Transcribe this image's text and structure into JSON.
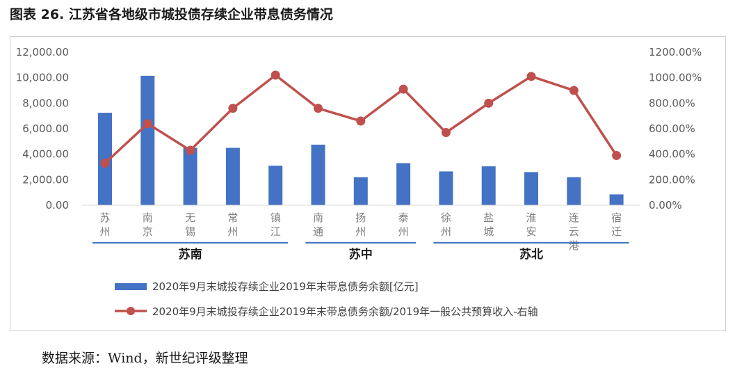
{
  "figure": {
    "title": "图表 26. 江苏省各地级市城投债存续企业带息债务情况",
    "source": "数据来源：Wind，新世纪评级整理"
  },
  "chart_data": {
    "type": "bar+line",
    "categories": [
      [
        "苏",
        "州"
      ],
      [
        "南",
        "京"
      ],
      [
        "无",
        "锡"
      ],
      [
        "常",
        "州"
      ],
      [
        "镇",
        "江"
      ],
      [
        "南",
        "通"
      ],
      [
        "扬",
        "州"
      ],
      [
        "泰",
        "州"
      ],
      [
        "徐",
        "州"
      ],
      [
        "盐",
        "城"
      ],
      [
        "淮",
        "安"
      ],
      [
        "连",
        "云",
        "港"
      ],
      [
        "宿",
        "迁"
      ]
    ],
    "groups": [
      {
        "label": "苏南",
        "start": 0,
        "end": 4
      },
      {
        "label": "苏中",
        "start": 5,
        "end": 7
      },
      {
        "label": "苏北",
        "start": 8,
        "end": 12
      }
    ],
    "series": [
      {
        "name": "2020年9月末城投存续企业2019年末带息债务余额[亿元]",
        "type": "bar",
        "axis": "left",
        "color": "#4472C4",
        "values": [
          7250,
          10150,
          4500,
          4500,
          3100,
          4750,
          2200,
          3300,
          2650,
          3050,
          2600,
          2200,
          850
        ]
      },
      {
        "name": "2020年9月末城投存续企业2019年末带息债务余额/2019年一般公共预算收入-右轴",
        "type": "line",
        "axis": "right",
        "color": "#C0504D",
        "values": [
          330,
          640,
          430,
          760,
          1020,
          760,
          660,
          910,
          570,
          800,
          1010,
          900,
          390
        ]
      }
    ],
    "y_left": {
      "min": 0,
      "max": 12000,
      "step": 2000,
      "tick_labels": [
        "0.00",
        "2,000.00",
        "4,000.00",
        "6,000.00",
        "8,000.00",
        "10,000.00",
        "12,000.00"
      ]
    },
    "y_right": {
      "min": 0,
      "max": 1200,
      "step": 200,
      "tick_labels": [
        "0.00%",
        "200.00%",
        "400.00%",
        "600.00%",
        "800.00%",
        "1000.00%",
        "1200.00%"
      ]
    },
    "grid": false,
    "legend_position": "bottom"
  }
}
